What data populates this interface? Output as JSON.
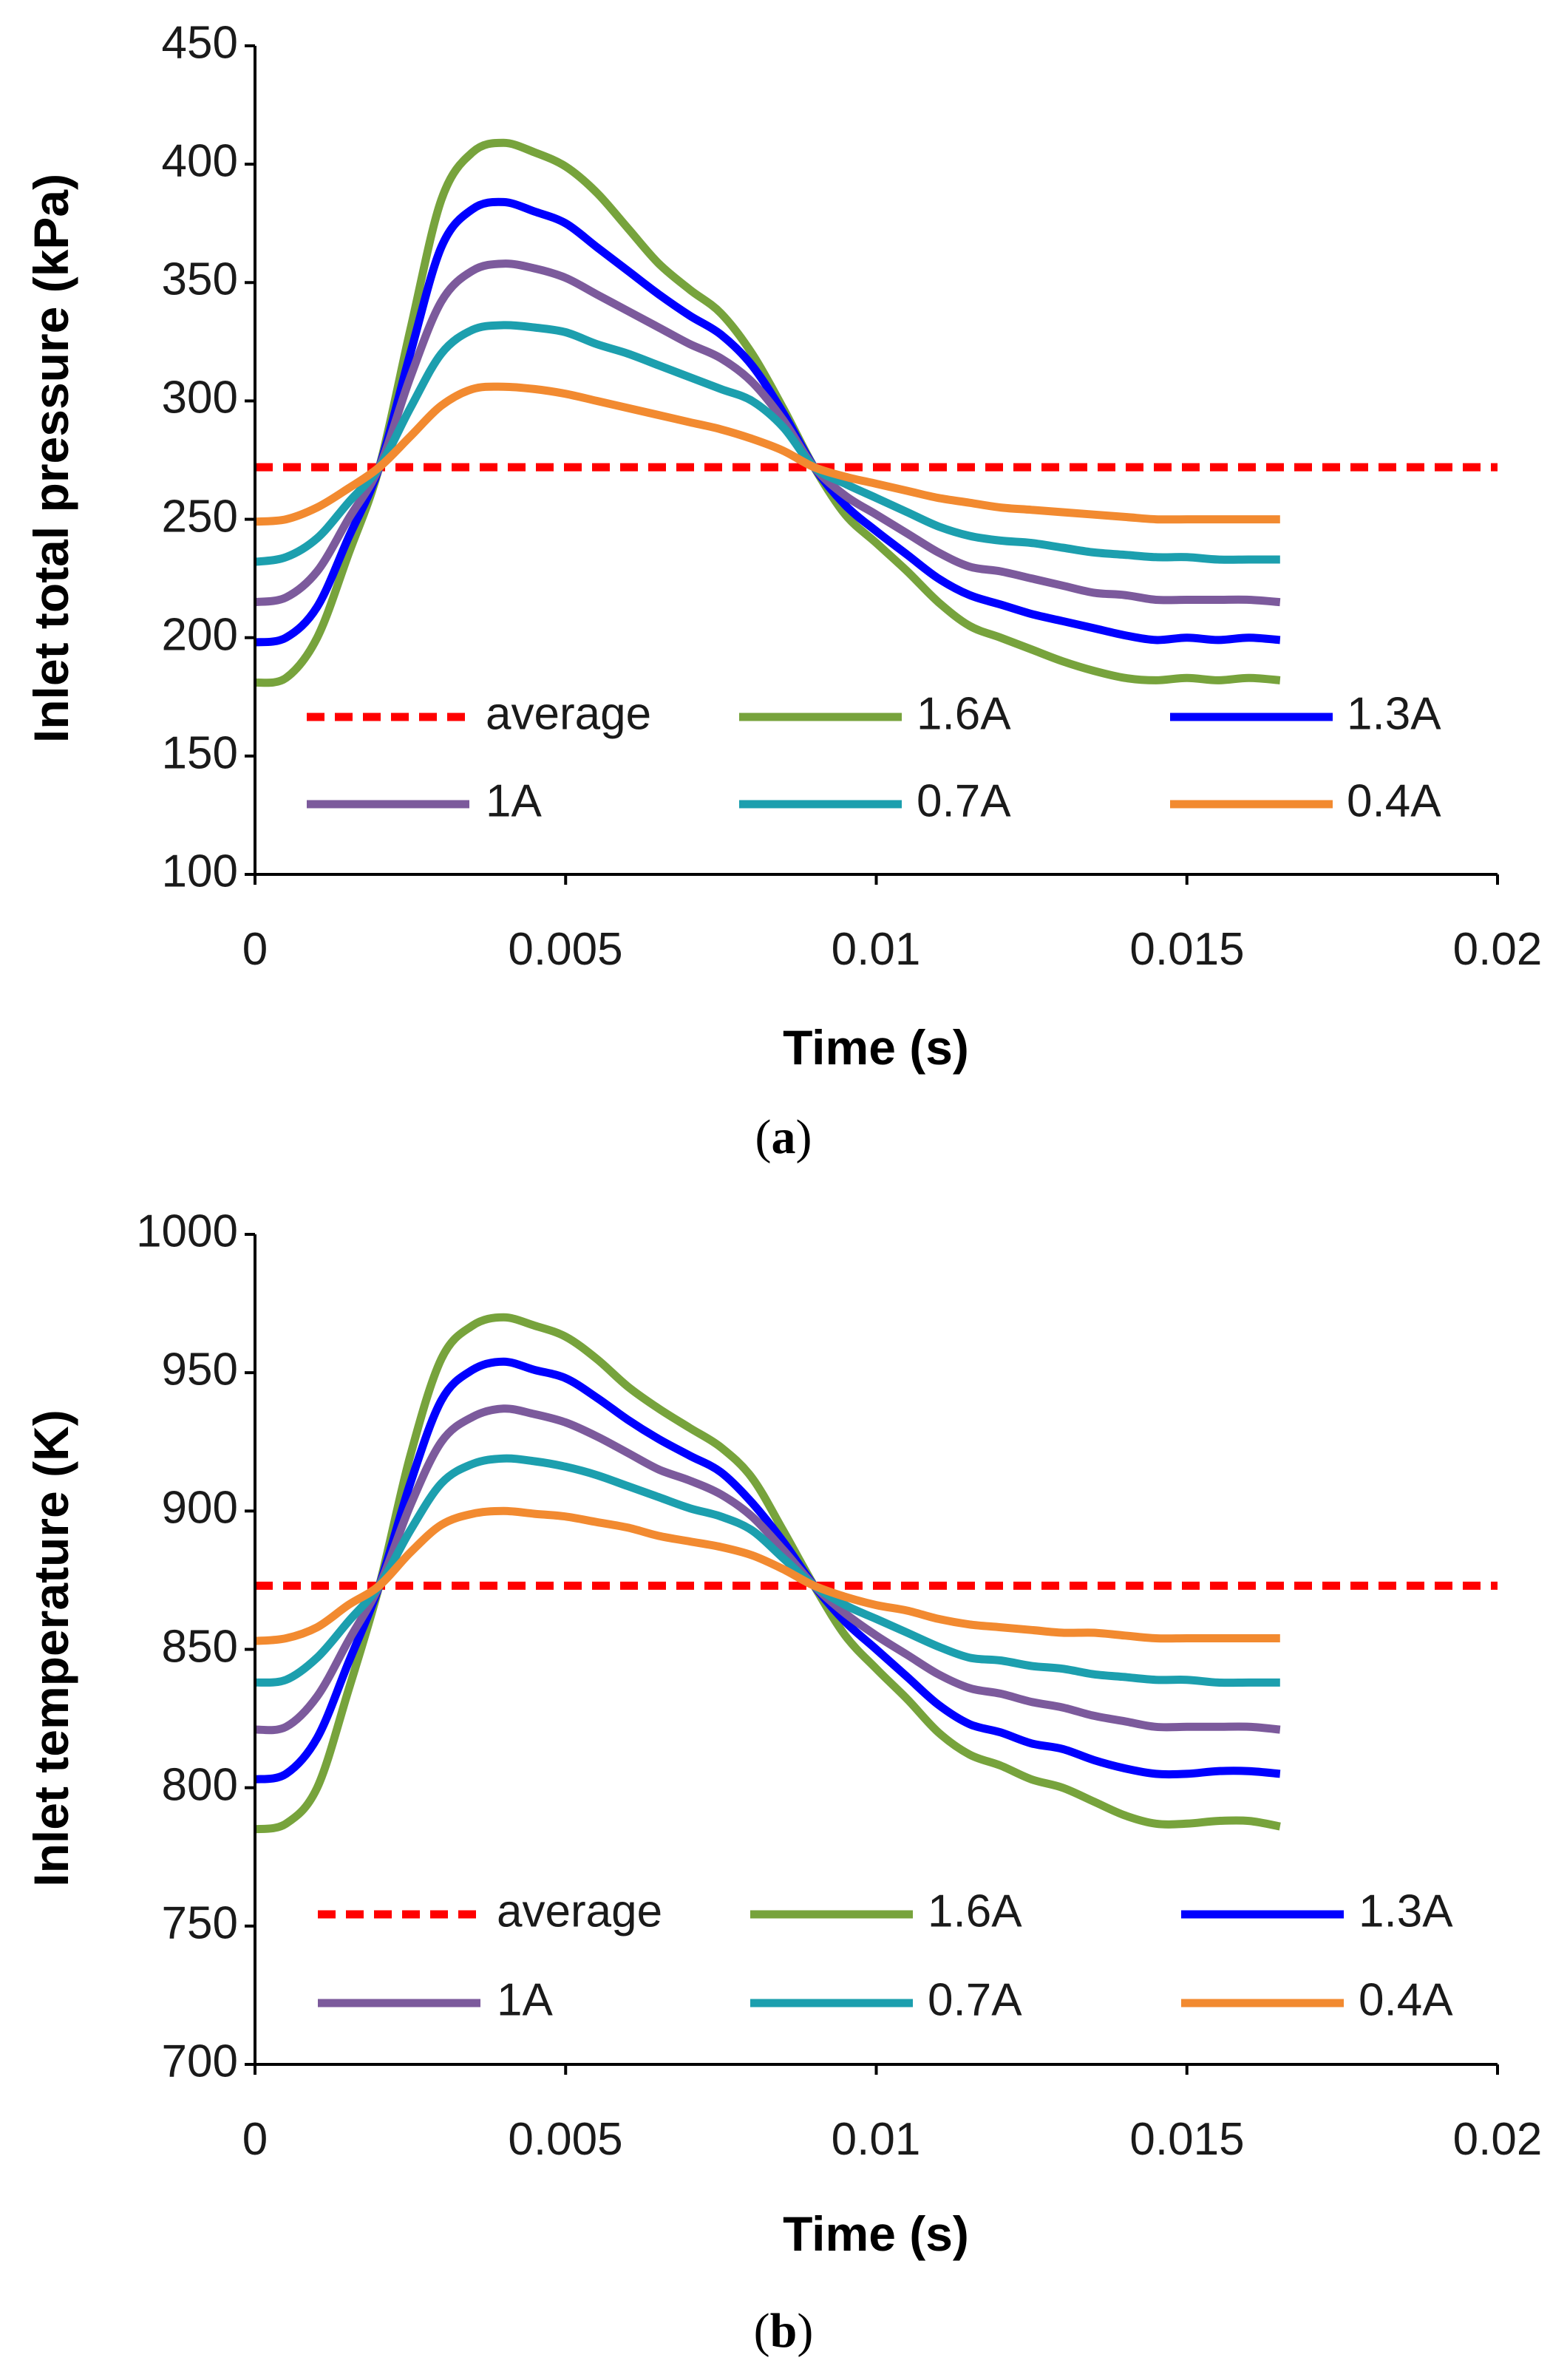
{
  "chart_data": [
    {
      "type": "line",
      "panel": "a",
      "caption_letter": "a",
      "xlabel": "Time (s)",
      "ylabel": "Inlet total pressure (kPa)",
      "xlim": [
        0,
        0.02
      ],
      "ylim": [
        100,
        450
      ],
      "x_ticks": [
        0,
        0.005,
        0.01,
        0.015,
        0.02
      ],
      "x_tick_labels": [
        "0",
        "0.005",
        "0.01",
        "0.015",
        "0.02"
      ],
      "y_ticks": [
        100,
        150,
        200,
        250,
        300,
        350,
        400,
        450
      ],
      "y_tick_labels": [
        "100",
        "150",
        "200",
        "250",
        "300",
        "350",
        "400",
        "450"
      ],
      "grid": false,
      "x": [
        0,
        0.0005,
        0.001,
        0.0015,
        0.002,
        0.0025,
        0.003,
        0.0035,
        0.004,
        0.0045,
        0.005,
        0.0055,
        0.006,
        0.0065,
        0.007,
        0.0075,
        0.008,
        0.0085,
        0.009,
        0.0095,
        0.01,
        0.0105,
        0.011,
        0.0115,
        0.012,
        0.0125,
        0.013,
        0.0135,
        0.014,
        0.0145,
        0.015,
        0.0155,
        0.016,
        0.0165
      ],
      "series": [
        {
          "name": "average",
          "color": "#ff0000",
          "style": "dashed",
          "constant": 272,
          "x_range": [
            0,
            0.02
          ]
        },
        {
          "name": "1.6A",
          "color": "#77a33c",
          "style": "solid",
          "values": [
            181,
            183,
            200,
            235,
            272,
            330,
            385,
            405,
            409,
            405,
            399,
            388,
            373,
            358,
            347,
            337,
            320,
            297,
            272,
            252,
            240,
            228,
            215,
            205,
            200,
            195,
            190,
            186,
            183,
            182,
            183,
            182,
            183,
            182
          ]
        },
        {
          "name": "1.3A",
          "color": "#0000ff",
          "style": "solid",
          "values": [
            198,
            200,
            213,
            242,
            272,
            320,
            365,
            381,
            384,
            380,
            375,
            365,
            355,
            345,
            336,
            328,
            315,
            295,
            272,
            256,
            245,
            235,
            225,
            218,
            214,
            210,
            207,
            204,
            201,
            199,
            200,
            199,
            200,
            199
          ]
        },
        {
          "name": "1A",
          "color": "#7c5a9c",
          "style": "solid",
          "values": [
            215,
            217,
            228,
            250,
            272,
            310,
            342,
            355,
            358,
            356,
            352,
            345,
            338,
            331,
            324,
            318,
            308,
            292,
            272,
            260,
            252,
            244,
            236,
            230,
            228,
            225,
            222,
            219,
            218,
            216,
            216,
            216,
            216,
            215
          ]
        },
        {
          "name": "0.7A",
          "color": "#1c9fae",
          "style": "solid",
          "values": [
            232,
            234,
            242,
            257,
            272,
            297,
            320,
            330,
            332,
            331,
            329,
            324,
            320,
            315,
            310,
            305,
            300,
            289,
            272,
            265,
            259,
            253,
            247,
            243,
            241,
            240,
            238,
            236,
            235,
            234,
            234,
            233,
            233,
            233
          ]
        },
        {
          "name": "0.4A",
          "color": "#f28a30",
          "style": "solid",
          "values": [
            249,
            250,
            255,
            263,
            272,
            285,
            298,
            305,
            306,
            305,
            303,
            300,
            297,
            294,
            291,
            288,
            284,
            279,
            272,
            268,
            265,
            262,
            259,
            257,
            255,
            254,
            253,
            252,
            251,
            250,
            250,
            250,
            250,
            250
          ]
        }
      ]
    },
    {
      "type": "line",
      "panel": "b",
      "caption_letter": "b",
      "xlabel": "Time (s)",
      "ylabel": "Inlet temperature (K)",
      "xlim": [
        0,
        0.02
      ],
      "ylim": [
        700,
        1000
      ],
      "x_ticks": [
        0,
        0.005,
        0.01,
        0.015,
        0.02
      ],
      "x_tick_labels": [
        "0",
        "0.005",
        "0.01",
        "0.015",
        "0.02"
      ],
      "y_ticks": [
        700,
        750,
        800,
        850,
        900,
        950,
        1000
      ],
      "y_tick_labels": [
        "700",
        "750",
        "800",
        "850",
        "900",
        "950",
        "1000"
      ],
      "grid": false,
      "x": [
        0,
        0.0005,
        0.001,
        0.0015,
        0.002,
        0.0025,
        0.003,
        0.0035,
        0.004,
        0.0045,
        0.005,
        0.0055,
        0.006,
        0.0065,
        0.007,
        0.0075,
        0.008,
        0.0085,
        0.009,
        0.0095,
        0.01,
        0.0105,
        0.011,
        0.0115,
        0.012,
        0.0125,
        0.013,
        0.0135,
        0.014,
        0.0145,
        0.015,
        0.0155,
        0.016,
        0.0165
      ],
      "series": [
        {
          "name": "average",
          "color": "#ff0000",
          "style": "dashed",
          "constant": 873,
          "x_range": [
            0,
            0.02
          ]
        },
        {
          "name": "1.6A",
          "color": "#77a33c",
          "style": "solid",
          "values": [
            785,
            787,
            800,
            835,
            873,
            920,
            955,
            967,
            970,
            967,
            963,
            955,
            945,
            937,
            930,
            923,
            912,
            893,
            873,
            855,
            843,
            832,
            820,
            812,
            808,
            803,
            800,
            795,
            790,
            787,
            787,
            788,
            788,
            786
          ]
        },
        {
          "name": "1.3A",
          "color": "#0000ff",
          "style": "solid",
          "values": [
            803,
            805,
            818,
            845,
            873,
            910,
            940,
            951,
            954,
            951,
            948,
            941,
            933,
            926,
            920,
            914,
            903,
            889,
            873,
            860,
            850,
            840,
            830,
            823,
            820,
            816,
            814,
            810,
            807,
            805,
            805,
            806,
            806,
            805
          ]
        },
        {
          "name": "1A",
          "color": "#7c5a9c",
          "style": "solid",
          "values": [
            821,
            822,
            833,
            853,
            873,
            902,
            925,
            934,
            937,
            935,
            932,
            927,
            921,
            915,
            911,
            906,
            898,
            886,
            873,
            863,
            855,
            848,
            841,
            836,
            834,
            831,
            829,
            826,
            824,
            822,
            822,
            822,
            822,
            821
          ]
        },
        {
          "name": "0.7A",
          "color": "#1c9fae",
          "style": "solid",
          "values": [
            838,
            839,
            847,
            860,
            873,
            893,
            910,
            917,
            919,
            918,
            916,
            913,
            909,
            905,
            901,
            898,
            893,
            883,
            873,
            866,
            861,
            856,
            851,
            847,
            846,
            844,
            843,
            841,
            840,
            839,
            839,
            838,
            838,
            838
          ]
        },
        {
          "name": "0.4A",
          "color": "#f28a30",
          "style": "solid",
          "values": [
            853,
            854,
            858,
            866,
            873,
            885,
            895,
            899,
            900,
            899,
            898,
            896,
            894,
            891,
            889,
            887,
            884,
            879,
            873,
            869,
            866,
            864,
            861,
            859,
            858,
            857,
            856,
            856,
            855,
            854,
            854,
            854,
            854,
            854
          ]
        }
      ]
    }
  ]
}
